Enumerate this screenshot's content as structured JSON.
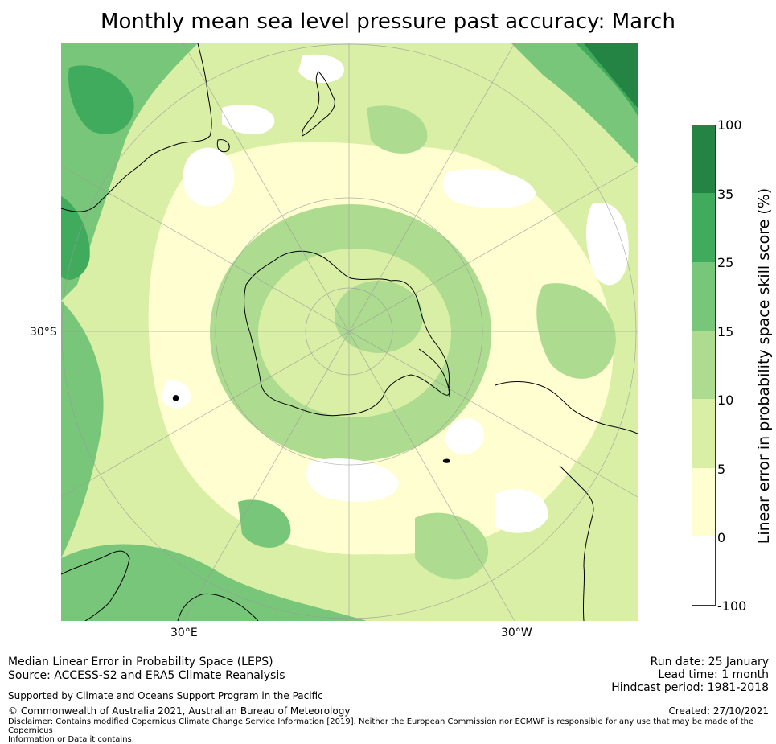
{
  "title": "Monthly mean sea level pressure past accuracy: March",
  "map": {
    "lat_label": "30°S",
    "lon_labels": [
      "30°E",
      "30°W"
    ],
    "colors": {
      "ocean_base": "#d9efa6",
      "white": "#ffffff",
      "pale_yellow": "#fefed0",
      "yellow_green": "#d9efa6",
      "light_green": "#addc90",
      "mid_green": "#78c679",
      "green": "#41ab5d",
      "dark_green": "#238443",
      "coast": "#000000",
      "grid": "#9a9a9a"
    }
  },
  "colorbar": {
    "title": "Linear error in probability space skill score (%)",
    "ticks": [
      "100",
      "35",
      "25",
      "15",
      "10",
      "5",
      "0",
      "-100"
    ],
    "colors": [
      "#238443",
      "#41ab5d",
      "#78c679",
      "#addc90",
      "#d9efa6",
      "#fefed0",
      "#ffffff"
    ]
  },
  "footer": {
    "line1": "Median Linear Error in Probability Space (LEPS)",
    "line2": "Source: ACCESS-S2 and ERA5 Climate Reanalysis",
    "support": "Supported by Climate and Oceans Support Program in the Pacific",
    "copyright": "© Commonwealth of Australia 2021, Australian Bureau of Meteorology",
    "disclaimer1": "Disclaimer: Contains modified Copernicus Climate Change Service Information [2019]. Neither the European Commission nor ECMWF is responsible for any use that may be made of the Copernicus",
    "disclaimer2": "Information or Data it contains.",
    "run_date": "Run date: 25 January",
    "lead_time": "Lead time: 1 month",
    "hindcast": "Hindcast period: 1981-2018",
    "created": "Created: 27/10/2021"
  }
}
